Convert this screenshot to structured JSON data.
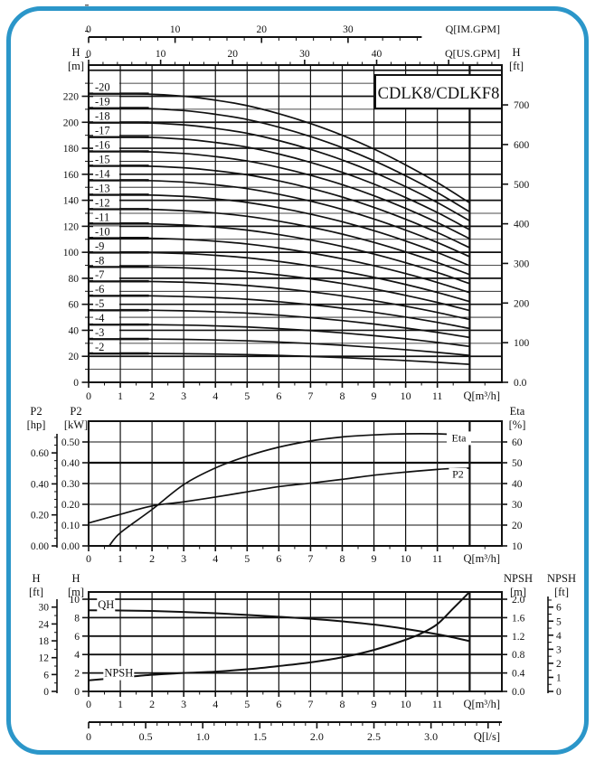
{
  "window": {
    "border_color": "#2b96c9",
    "background": "#ffffff",
    "ink_color": "#111111"
  },
  "title_box": {
    "label": "CDLK8/CDLKF8"
  },
  "chart_data": [
    {
      "id": "head_capacity",
      "type": "line",
      "title": "CDLK8/CDLKF8",
      "x_axis_m3h": {
        "label": "Q[m³/h]",
        "ticks": [
          0,
          1,
          2,
          3,
          4,
          5,
          6,
          7,
          8,
          9,
          10,
          11
        ],
        "minor_step": 0.5,
        "max": 13.0,
        "curve_end": 12.02
      },
      "x_axis_us_gpm": {
        "label": "Q[US.GPM]",
        "ticks": [
          0,
          10,
          20,
          30,
          40
        ],
        "minor_step": 2,
        "minor_max": 56,
        "m3h_per_unit": 0.22712
      },
      "x_axis_im_gpm": {
        "label": "Q[IM.GPM]",
        "ticks": [
          0,
          10,
          20,
          30
        ],
        "minor_step": 2,
        "minor_max": 38,
        "m3h_per_unit": 0.27277
      },
      "y_axis_m": {
        "name": "H",
        "unit": "[m]",
        "tick_labels": [
          "0",
          "20",
          "40",
          "60",
          "80",
          "100",
          "120",
          "140",
          "160",
          "180",
          "200",
          "220"
        ],
        "tick_values": [
          0,
          20,
          40,
          60,
          80,
          100,
          120,
          140,
          160,
          180,
          200,
          220
        ],
        "minor_step": 10,
        "grid_max": 240,
        "axis_max": 244
      },
      "y_axis_ft": {
        "name": "H",
        "unit": "[ft]",
        "tick_labels": [
          "0.0",
          "100",
          "200",
          "300",
          "400",
          "500",
          "600",
          "700"
        ],
        "tick_values": [
          0,
          100,
          200,
          300,
          400,
          500,
          600,
          700
        ],
        "m_per_ft": 0.3048
      },
      "stages": {
        "labels": [
          "-2",
          "-3",
          "-4",
          "-5",
          "-6",
          "-7",
          "-8",
          "-9",
          "-10",
          "-11",
          "-12",
          "-13",
          "-14",
          "-15",
          "-16",
          "-17",
          "-18",
          "-19",
          "-20"
        ],
        "counts": [
          2,
          3,
          4,
          5,
          6,
          7,
          8,
          9,
          10,
          11,
          12,
          13,
          14,
          15,
          16,
          17,
          18,
          19,
          20
        ]
      },
      "per_stage_curve": {
        "q": [
          0,
          1.5,
          3,
          4,
          5,
          6,
          7,
          8,
          9,
          10,
          11,
          12.02
        ],
        "h_m": [
          11.1,
          11.1,
          11.0,
          10.85,
          10.64,
          10.33,
          9.95,
          9.5,
          8.97,
          8.36,
          7.68,
          6.9
        ]
      },
      "label_segment_end_q": 1.9
    },
    {
      "id": "power_efficiency",
      "type": "line",
      "x_axis_m3h": {
        "label": "Q[m³/h]",
        "ticks": [
          0,
          1,
          2,
          3,
          4,
          5,
          6,
          7,
          8,
          9,
          10,
          11
        ],
        "minor_step": 0.5
      },
      "y_axis_kw": {
        "name": "P2",
        "unit": "[kW]",
        "tick_labels": [
          "0.00",
          "0.10",
          "0.20",
          "0.30",
          "0.40",
          "0.50"
        ],
        "tick_values": [
          0,
          0.1,
          0.2,
          0.3,
          0.4,
          0.5
        ],
        "thick_grid_at": 0.4
      },
      "y_axis_hp": {
        "name": "P2",
        "unit": "[hp]",
        "tick_labels": [
          "0.00",
          "0.20",
          "0.40",
          "0.60"
        ],
        "tick_values": [
          0,
          0.2,
          0.4,
          0.6
        ],
        "minor_step": 0.05,
        "kw_per_hp": 0.7457
      },
      "y_axis_eta": {
        "name": "Eta",
        "unit": "[%]",
        "tick_labels": [
          "10",
          "20",
          "30",
          "40",
          "50",
          "60"
        ],
        "tick_values": [
          10,
          20,
          30,
          40,
          50,
          60
        ],
        "kw_at_10pct": 0.0,
        "kw_per_10pct": 0.1
      },
      "series": [
        {
          "name": "P2",
          "label": "P2",
          "axis": "kw",
          "q": [
            0,
            1,
            2,
            3,
            4,
            5,
            6,
            7,
            8,
            9,
            10,
            11,
            11.6,
            12.02
          ],
          "kw": [
            0.11,
            0.152,
            0.192,
            0.212,
            0.235,
            0.26,
            0.285,
            0.302,
            0.32,
            0.34,
            0.355,
            0.368,
            0.373,
            0.374
          ],
          "label_x_q": 11.65,
          "label_kw": 0.345
        },
        {
          "name": "Eta",
          "label": "Eta",
          "axis": "eta",
          "q": [
            0.65,
            1,
            2,
            3,
            4,
            5,
            6,
            7,
            8,
            9,
            10,
            11,
            11.6,
            12.02
          ],
          "percent": [
            10,
            16.3,
            27.5,
            39.5,
            47.5,
            53.2,
            57.5,
            60.5,
            62.4,
            63.4,
            63.9,
            63.9,
            63.5,
            62.8
          ],
          "label_x_q": 11.68,
          "label_percent": 62.0
        }
      ]
    },
    {
      "id": "qh_npsh",
      "type": "line",
      "x_axis_m3h": {
        "label": "Q[m³/h]",
        "ticks": [
          0,
          1,
          2,
          3,
          4,
          5,
          6,
          7,
          8,
          9,
          10,
          11
        ],
        "minor_step": 0.5
      },
      "x_axis_ls": {
        "label": "Q[l/s]",
        "tick_labels": [
          "0",
          "0.5",
          "1.0",
          "1.5",
          "2.0",
          "2.5",
          "3.0"
        ],
        "tick_values": [
          0,
          0.5,
          1,
          1.5,
          2,
          2.5,
          3
        ],
        "minor_step": 0.1,
        "minor_max": 3.6,
        "major_max": 3.5,
        "m3h_per_unit": 3.6
      },
      "y_axis_m": {
        "name": "H",
        "unit": "[m]",
        "tick_labels": [
          "0",
          "2",
          "4",
          "6",
          "8",
          "10"
        ],
        "tick_values": [
          0,
          2,
          4,
          6,
          8,
          10
        ]
      },
      "y_axis_ft": {
        "name": "H",
        "unit": "[ft]",
        "tick_labels": [
          "0",
          "6",
          "12",
          "18",
          "24",
          "30"
        ],
        "tick_values": [
          0,
          6,
          12,
          18,
          24,
          30
        ],
        "minor_step": 3,
        "m_per_ft": 0.3048
      },
      "y_axis_npsh_m": {
        "name": "NPSH",
        "unit": "[m]",
        "tick_labels": [
          "0.0",
          "0.4",
          "0.8",
          "1.2",
          "1.6",
          "2.0"
        ],
        "tick_values": [
          0,
          0.4,
          0.8,
          1.2,
          1.6,
          2.0
        ],
        "h_m_per_npsh_m": 5
      },
      "y_axis_npsh_ft": {
        "name": "NPSH",
        "unit": "[ft]",
        "tick_labels": [
          "0",
          "1",
          "2",
          "3",
          "4",
          "5",
          "6"
        ],
        "tick_values": [
          0,
          1,
          2,
          3,
          4,
          5,
          6
        ],
        "minor_step": 0.5,
        "m_per_ft": 0.3048
      },
      "series": [
        {
          "name": "QH",
          "label": "QH",
          "axis": "m",
          "q": [
            0,
            1,
            2,
            3,
            4,
            5,
            6,
            7,
            8,
            9,
            10,
            11,
            11.5,
            12.02
          ],
          "h_m": [
            8.8,
            8.78,
            8.72,
            8.62,
            8.48,
            8.3,
            8.1,
            7.88,
            7.6,
            7.25,
            6.78,
            6.2,
            5.85,
            5.45
          ],
          "label_x_q": 0.55,
          "label_h_m": 9.4
        },
        {
          "name": "NPSH",
          "label": "NPSH",
          "axis": "npsh",
          "q": [
            0,
            1,
            2,
            3,
            4,
            5,
            6,
            7,
            8,
            9,
            10,
            10.5,
            11,
            11.5,
            12.02
          ],
          "npsh_m": [
            0.24,
            0.3,
            0.36,
            0.4,
            0.43,
            0.48,
            0.55,
            0.63,
            0.74,
            0.9,
            1.12,
            1.26,
            1.46,
            1.8,
            2.16
          ],
          "label_x_q": 0.95,
          "label_h_m": 2.0
        }
      ]
    }
  ]
}
